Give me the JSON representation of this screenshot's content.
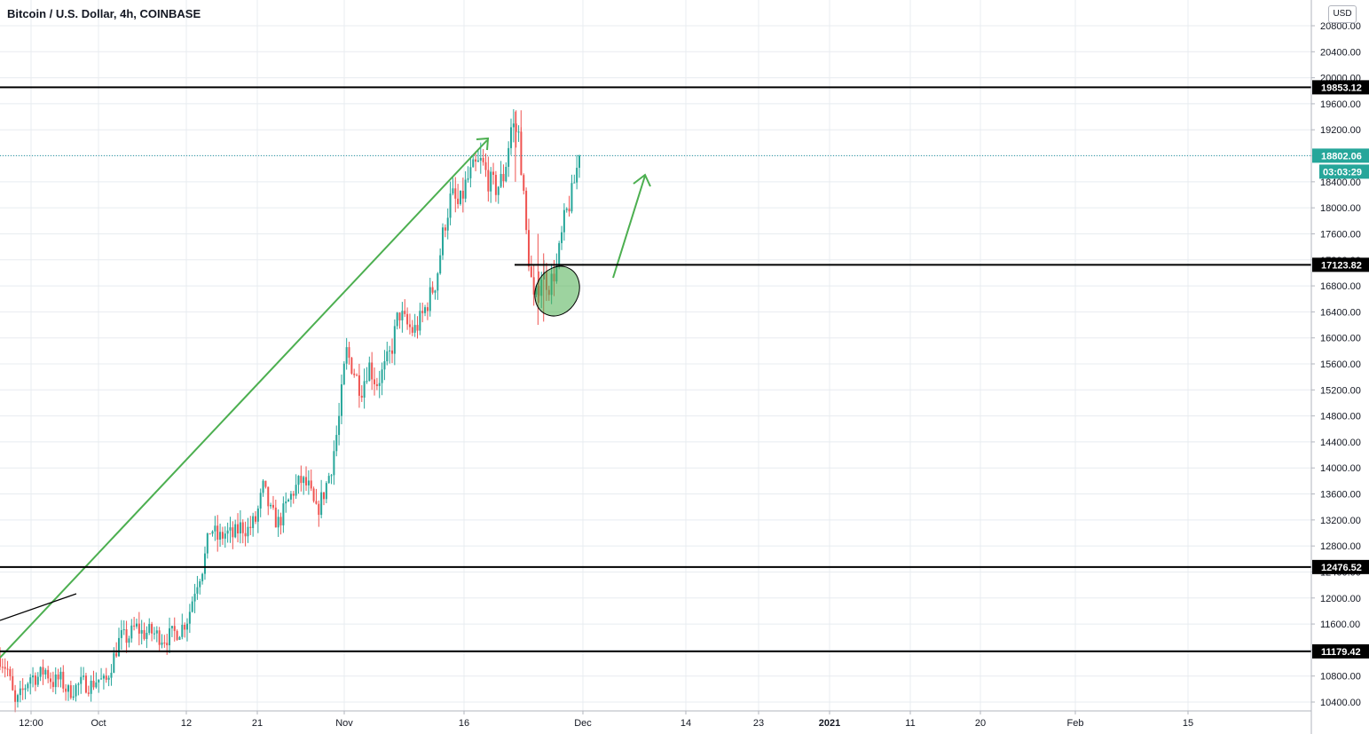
{
  "header": {
    "title": "Bitcoin / U.S. Dollar, 4h, COINBASE",
    "currency": "USD"
  },
  "colors": {
    "up": "#26a69a",
    "down": "#ef5350",
    "drawing_green": "#4caf50",
    "level_line": "#000000",
    "price_line": "#2196a3",
    "grid": "#e8ecf0"
  },
  "chart_data": {
    "type": "candlestick",
    "title": "Bitcoin / U.S. Dollar, 4h, COINBASE",
    "x_ticks": [
      "12:00",
      "Oct",
      "12",
      "21",
      "Nov",
      "16",
      "Dec",
      "14",
      "23",
      "2021",
      "11",
      "20",
      "Feb",
      "15"
    ],
    "y_ticks": [
      10400,
      10800,
      11200,
      11600,
      12000,
      12400,
      12800,
      13200,
      13600,
      14000,
      14400,
      14800,
      15200,
      15600,
      16000,
      16400,
      16800,
      17200,
      17600,
      18000,
      18400,
      18800,
      19200,
      19600,
      20000,
      20400,
      20800
    ],
    "ylim": [
      10300,
      21050
    ],
    "series_path": [
      [
        0,
        11080
      ],
      [
        0.02,
        10900
      ],
      [
        0.04,
        10350
      ],
      [
        0.06,
        10560
      ],
      [
        0.08,
        10800
      ],
      [
        0.1,
        10780
      ],
      [
        0.12,
        10900
      ],
      [
        0.14,
        10700
      ],
      [
        0.16,
        10760
      ],
      [
        0.18,
        10550
      ],
      [
        0.2,
        10620
      ],
      [
        0.22,
        10700
      ],
      [
        0.24,
        10650
      ],
      [
        0.26,
        10760
      ],
      [
        0.28,
        10680
      ],
      [
        0.3,
        11050
      ],
      [
        0.32,
        11400
      ],
      [
        0.34,
        11380
      ],
      [
        0.36,
        11560
      ],
      [
        0.38,
        11450
      ],
      [
        0.4,
        11480
      ],
      [
        0.42,
        11420
      ],
      [
        0.44,
        11380
      ],
      [
        0.46,
        11450
      ],
      [
        0.48,
        11520
      ],
      [
        0.5,
        11700
      ],
      [
        0.52,
        12200
      ],
      [
        0.54,
        12500
      ],
      [
        0.56,
        13100
      ],
      [
        0.58,
        12900
      ],
      [
        0.6,
        13000
      ],
      [
        0.62,
        12950
      ],
      [
        0.64,
        13100
      ],
      [
        0.66,
        13050
      ],
      [
        0.68,
        13200
      ],
      [
        0.7,
        13700
      ],
      [
        0.72,
        13300
      ],
      [
        0.74,
        13150
      ],
      [
        0.76,
        13400
      ],
      [
        0.78,
        13650
      ],
      [
        0.8,
        13800
      ],
      [
        0.82,
        13700
      ],
      [
        0.84,
        13300
      ],
      [
        0.86,
        13600
      ],
      [
        0.88,
        14000
      ],
      [
        0.9,
        14700
      ],
      [
        0.92,
        15800
      ],
      [
        0.94,
        15500
      ],
      [
        0.96,
        15200
      ],
      [
        0.98,
        15600
      ],
      [
        1.0,
        15300
      ],
      [
        1.02,
        15500
      ],
      [
        1.04,
        15800
      ],
      [
        1.06,
        16400
      ],
      [
        1.08,
        16200
      ],
      [
        1.1,
        16100
      ],
      [
        1.12,
        16300
      ],
      [
        1.14,
        16600
      ],
      [
        1.16,
        16900
      ],
      [
        1.18,
        17700
      ],
      [
        1.2,
        18200
      ],
      [
        1.22,
        18000
      ],
      [
        1.24,
        18400
      ],
      [
        1.26,
        18600
      ],
      [
        1.28,
        18700
      ],
      [
        1.3,
        18400
      ],
      [
        1.32,
        18300
      ],
      [
        1.34,
        18500
      ],
      [
        1.36,
        19300
      ],
      [
        1.38,
        19100
      ],
      [
        1.4,
        17500
      ],
      [
        1.42,
        16500
      ],
      [
        1.44,
        17000
      ],
      [
        1.46,
        16800
      ],
      [
        1.48,
        17100
      ],
      [
        1.5,
        17800
      ],
      [
        1.52,
        18200
      ],
      [
        1.54,
        18802
      ]
    ],
    "levels": [
      {
        "label": "19853.12",
        "value": 19853.12
      },
      {
        "label": "17123.82",
        "value": 17123.82
      },
      {
        "label": "12476.52",
        "value": 12476.52
      },
      {
        "label": "11179.42",
        "value": 11179.42
      }
    ],
    "last_price": {
      "label": "18802.06",
      "value": 18802.06,
      "countdown": "03:03:29"
    }
  }
}
